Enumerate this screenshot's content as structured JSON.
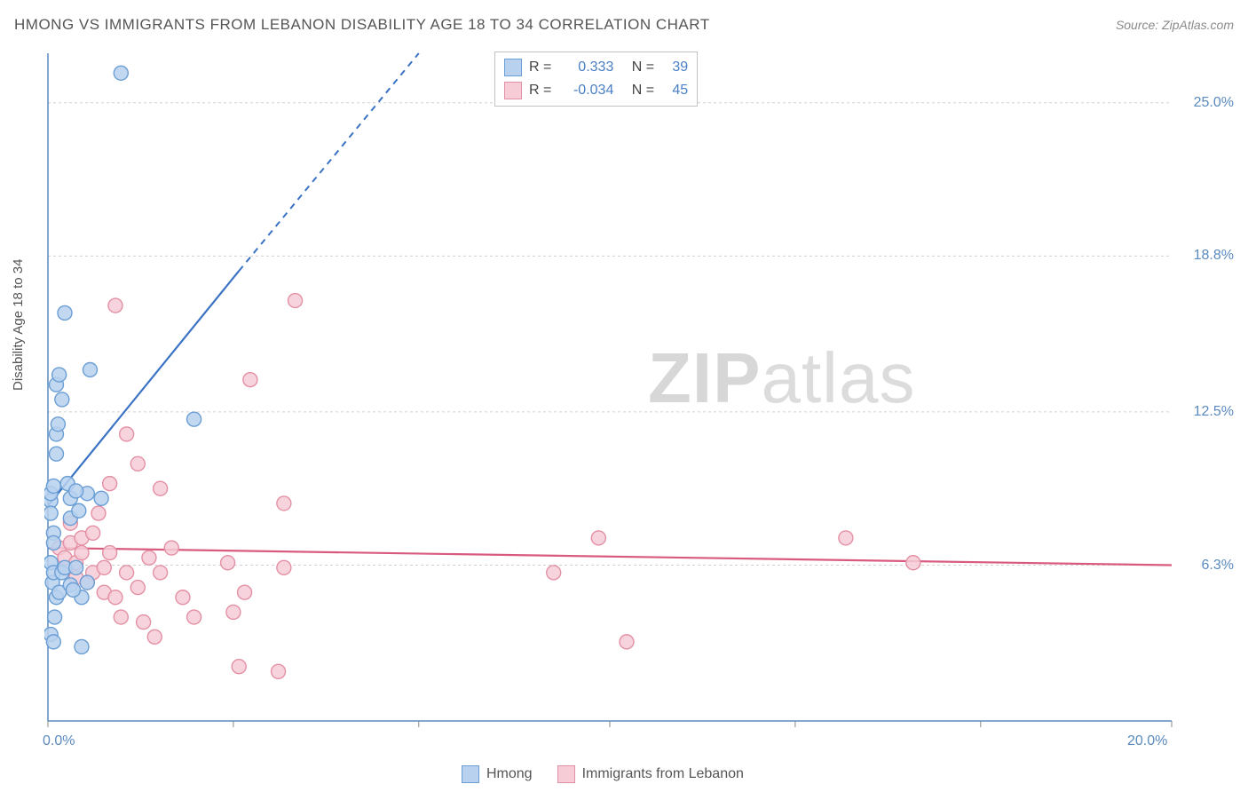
{
  "header": {
    "title": "HMONG VS IMMIGRANTS FROM LEBANON DISABILITY AGE 18 TO 34 CORRELATION CHART",
    "source": "Source: ZipAtlas.com"
  },
  "y_axis_label": "Disability Age 18 to 34",
  "watermark": {
    "zip": "ZIP",
    "atlas": "atlas"
  },
  "chart": {
    "type": "scatter-with-regression",
    "background_color": "#ffffff",
    "grid_color": "#d0d0d0",
    "axis_color": "#5a8abf",
    "xlim": [
      0,
      20
    ],
    "ylim": [
      0,
      27
    ],
    "x_ticks": [
      {
        "val": 0.0,
        "label": "0.0%"
      },
      {
        "val": 20.0,
        "label": "20.0%"
      }
    ],
    "y_ticks": [
      {
        "val": 6.3,
        "label": "6.3%"
      },
      {
        "val": 12.5,
        "label": "12.5%"
      },
      {
        "val": 18.8,
        "label": "18.8%"
      },
      {
        "val": 25.0,
        "label": "25.0%"
      }
    ],
    "x_minor_ticks": [
      0,
      3.3,
      6.6,
      10,
      13.3,
      16.6,
      20
    ],
    "series": [
      {
        "name": "Hmong",
        "legend_label": "Hmong",
        "fill_color": "#b7d1ee",
        "stroke_color": "#6a9ed4",
        "line_color": "#3a72c4",
        "marker_radius": 8,
        "marker_opacity": 0.85,
        "R": "0.333",
        "N": "39",
        "regression": {
          "solid": {
            "x1": 0.0,
            "y1": 8.7,
            "x2": 3.4,
            "y2": 18.2
          },
          "dashed": {
            "x1": 3.4,
            "y1": 18.2,
            "x2": 6.6,
            "y2": 27.0
          }
        },
        "points": [
          [
            0.05,
            8.9
          ],
          [
            0.05,
            8.4
          ],
          [
            0.05,
            9.2
          ],
          [
            0.1,
            7.6
          ],
          [
            0.1,
            7.2
          ],
          [
            0.1,
            9.5
          ],
          [
            0.15,
            10.8
          ],
          [
            0.15,
            11.6
          ],
          [
            0.15,
            13.6
          ],
          [
            0.18,
            12.0
          ],
          [
            0.2,
            14.0
          ],
          [
            0.25,
            13.0
          ],
          [
            0.3,
            16.5
          ],
          [
            0.35,
            9.6
          ],
          [
            0.4,
            9.0
          ],
          [
            0.4,
            8.2
          ],
          [
            0.05,
            6.4
          ],
          [
            0.08,
            5.6
          ],
          [
            0.1,
            6.0
          ],
          [
            0.12,
            4.2
          ],
          [
            0.15,
            5.0
          ],
          [
            0.2,
            5.2
          ],
          [
            0.25,
            6.0
          ],
          [
            0.3,
            6.2
          ],
          [
            0.4,
            5.5
          ],
          [
            0.5,
            6.2
          ],
          [
            0.6,
            5.0
          ],
          [
            0.6,
            3.0
          ],
          [
            0.7,
            5.6
          ],
          [
            0.7,
            9.2
          ],
          [
            0.75,
            14.2
          ],
          [
            0.95,
            9.0
          ],
          [
            1.3,
            26.2
          ],
          [
            2.6,
            12.2
          ],
          [
            0.05,
            3.5
          ],
          [
            0.1,
            3.2
          ],
          [
            0.45,
            5.3
          ],
          [
            0.5,
            9.3
          ],
          [
            0.55,
            8.5
          ]
        ]
      },
      {
        "name": "Immigrants from Lebanon",
        "legend_label": "Immigrants from Lebanon",
        "fill_color": "#f6cdd7",
        "stroke_color": "#e490a4",
        "line_color": "#d95a7f",
        "marker_radius": 8,
        "marker_opacity": 0.85,
        "R": "-0.034",
        "N": "45",
        "regression": {
          "solid": {
            "x1": 0.0,
            "y1": 7.0,
            "x2": 20.0,
            "y2": 6.3
          },
          "dashed": null
        },
        "points": [
          [
            0.2,
            7.0
          ],
          [
            0.3,
            6.6
          ],
          [
            0.4,
            7.2
          ],
          [
            0.4,
            8.0
          ],
          [
            0.5,
            6.4
          ],
          [
            0.5,
            5.8
          ],
          [
            0.6,
            6.8
          ],
          [
            0.6,
            7.4
          ],
          [
            0.7,
            5.6
          ],
          [
            0.8,
            6.0
          ],
          [
            0.8,
            7.6
          ],
          [
            0.9,
            8.4
          ],
          [
            1.0,
            6.2
          ],
          [
            1.0,
            5.2
          ],
          [
            1.1,
            6.8
          ],
          [
            1.1,
            9.6
          ],
          [
            1.2,
            5.0
          ],
          [
            1.2,
            16.8
          ],
          [
            1.3,
            4.2
          ],
          [
            1.4,
            6.0
          ],
          [
            1.4,
            11.6
          ],
          [
            1.6,
            5.4
          ],
          [
            1.6,
            10.4
          ],
          [
            1.7,
            4.0
          ],
          [
            1.8,
            6.6
          ],
          [
            1.9,
            3.4
          ],
          [
            2.0,
            6.0
          ],
          [
            2.0,
            9.4
          ],
          [
            2.2,
            7.0
          ],
          [
            2.4,
            5.0
          ],
          [
            2.6,
            4.2
          ],
          [
            3.2,
            6.4
          ],
          [
            3.3,
            4.4
          ],
          [
            3.4,
            2.2
          ],
          [
            3.5,
            5.2
          ],
          [
            3.6,
            13.8
          ],
          [
            4.1,
            2.0
          ],
          [
            4.2,
            6.2
          ],
          [
            4.2,
            8.8
          ],
          [
            4.4,
            17.0
          ],
          [
            9.0,
            6.0
          ],
          [
            9.8,
            7.4
          ],
          [
            10.3,
            3.2
          ],
          [
            14.2,
            7.4
          ],
          [
            15.4,
            6.4
          ]
        ]
      }
    ]
  },
  "stats_box": {
    "r_prefix": "R =",
    "n_prefix": "N ="
  }
}
